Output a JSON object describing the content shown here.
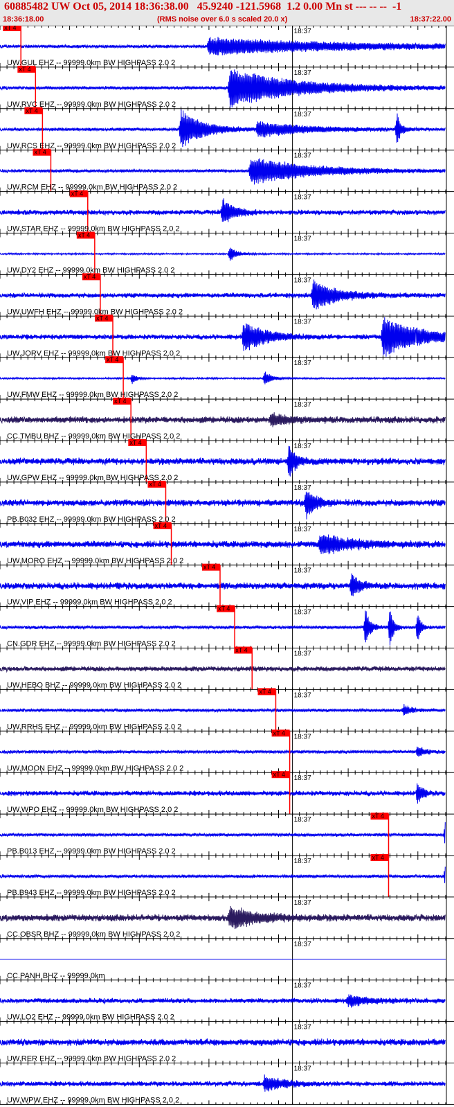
{
  "header": {
    "title": "60885482 UW Oct 05, 2014 18:36:38.00   45.9240 -121.5968  1.2 0.00 Mn st --- -- --  -1",
    "start_time": "18:36:18.00",
    "rms_note": "(RMS noise over 6.0 s scaled 20.0 x)",
    "end_time": "18:37:22.00"
  },
  "colors": {
    "trace": "#0000ee",
    "trace_dark": "#2a1a5e",
    "pick": "#ff0000",
    "pick_label_text": "#000000",
    "grid": "#000000",
    "header_text": "#cc0000"
  },
  "chart_data": {
    "type": "seismogram",
    "time_axis": {
      "start": "18:36:18.00",
      "end": "18:37:22.00",
      "minute_mark": "18:37"
    },
    "pick_label": "xT 4",
    "traces": [
      {
        "label": "UW.GUL EHZ -- 99999.0km BW  HIGHPASS  2.0  2",
        "pick_time": "18:36:21.0",
        "color": "trace",
        "base_amp": 2,
        "bursts": [
          {
            "t": 30,
            "w": 19,
            "a": 12
          }
        ]
      },
      {
        "label": "UW.RVC EHZ -- 99999.0km BW  HIGHPASS  2.0  2",
        "pick_time": "18:36:23.1",
        "color": "trace",
        "base_amp": 2,
        "bursts": [
          {
            "t": 33,
            "w": 9,
            "a": 28
          }
        ]
      },
      {
        "label": "UW.RCS EHZ -- 99999.0km BW  HIGHPASS  2.0  2",
        "pick_time": "18:36:24.1",
        "color": "trace",
        "base_amp": 2,
        "bursts": [
          {
            "t": 26,
            "w": 3,
            "a": 28
          },
          {
            "t": 37,
            "w": 7,
            "a": 10
          },
          {
            "t": 57,
            "w": 0.5,
            "a": 24
          }
        ]
      },
      {
        "label": "UW.RCM EHZ -- 99999.0km BW  HIGHPASS  2.0  2",
        "pick_time": "18:36:25.3",
        "color": "trace",
        "base_amp": 2,
        "bursts": [
          {
            "t": 36,
            "w": 8,
            "a": 20
          }
        ]
      },
      {
        "label": "UW.STAR EHZ -- 99999.0km BW  HIGHPASS  2.0  2",
        "pick_time": "18:36:30.6",
        "color": "trace",
        "base_amp": 3,
        "bursts": [
          {
            "t": 32,
            "w": 1.5,
            "a": 20
          }
        ]
      },
      {
        "label": "UW.DY2 EHZ -- 99999.0km BW  HIGHPASS  2.0  2",
        "pick_time": "18:36:31.6",
        "color": "trace",
        "base_amp": 1,
        "bursts": [
          {
            "t": 33,
            "w": 1,
            "a": 10
          }
        ]
      },
      {
        "label": "UW.UWFH EHZ -- 99999.0km BW  HIGHPASS  2.0  2",
        "pick_time": "18:36:32.4",
        "color": "trace",
        "base_amp": 3,
        "bursts": [
          {
            "t": 45,
            "w": 3,
            "a": 22
          }
        ]
      },
      {
        "label": "UW.JORV EHZ -- 99999.0km BW  HIGHPASS  2.0  2",
        "pick_time": "18:36:34.2",
        "color": "trace",
        "base_amp": 3,
        "bursts": [
          {
            "t": 35,
            "w": 3,
            "a": 20
          },
          {
            "t": 55,
            "w": 5,
            "a": 28
          }
        ]
      },
      {
        "label": "UW.FMW EHZ -- 99999.0km BW  HIGHPASS  2.0  2",
        "pick_time": "18:36:35.7",
        "color": "trace",
        "base_amp": 1,
        "bursts": [
          {
            "t": 19,
            "w": 0.5,
            "a": 8
          },
          {
            "t": 38,
            "w": 1,
            "a": 10
          }
        ]
      },
      {
        "label": "CC.TMBU BHZ -- 99999.0km BW  HIGHPASS  2.0  2",
        "pick_time": "18:36:36.8",
        "color": "trace_dark",
        "base_amp": 4,
        "bursts": [
          {
            "t": 39,
            "w": 2,
            "a": 8
          }
        ]
      },
      {
        "label": "UW.GPW EHZ -- 99999.0km BW  HIGHPASS  2.0  2",
        "pick_time": "18:36:39.0",
        "color": "trace",
        "base_amp": 4,
        "bursts": [
          {
            "t": 41.5,
            "w": 1,
            "a": 22
          }
        ]
      },
      {
        "label": "PB.B032 EHZ -- 99999.0km BW  HIGHPASS  2.0  2",
        "pick_time": "18:36:41.8",
        "color": "trace",
        "base_amp": 4,
        "bursts": [
          {
            "t": 44,
            "w": 1.2,
            "a": 22
          }
        ]
      },
      {
        "label": "UW.MORO EHZ -- 99999.0km BW  HIGHPASS  2.0  2",
        "pick_time": "18:36:42.6",
        "color": "trace",
        "base_amp": 4,
        "bursts": [
          {
            "t": 46,
            "w": 4,
            "a": 14
          }
        ]
      },
      {
        "label": "UW.VIP EHZ -- 99999.0km BW  HIGHPASS  2.0  2",
        "pick_time": "18:36:49.6",
        "color": "trace",
        "base_amp": 4,
        "bursts": [
          {
            "t": 50.5,
            "w": 1,
            "a": 16
          }
        ]
      },
      {
        "label": "CN.GDR EHZ -- 99999.0km BW  HIGHPASS  2.0  2",
        "pick_time": "18:36:51.7",
        "color": "trace",
        "base_amp": 2,
        "bursts": [
          {
            "t": 52.5,
            "w": 0.6,
            "a": 28
          },
          {
            "t": 56,
            "w": 0.5,
            "a": 28
          },
          {
            "t": 60,
            "w": 0.4,
            "a": 28
          }
        ]
      },
      {
        "label": "UW.HEBO BHZ -- 99999.0km BW  HIGHPASS  2.0  2",
        "pick_time": "18:36:54.2",
        "color": "trace_dark",
        "base_amp": 3,
        "bursts": []
      },
      {
        "label": "UW.RRHS EHZ -- 99999.0km BW  HIGHPASS  2.0  2",
        "pick_time": "18:36:57.6",
        "color": "trace",
        "base_amp": 2,
        "bursts": [
          {
            "t": 58,
            "w": 1,
            "a": 8
          }
        ]
      },
      {
        "label": "UW.MOON EHZ -- 99999.0km BW  HIGHPASS  2.0  2",
        "pick_time": "18:36:59.6",
        "color": "trace",
        "base_amp": 2,
        "bursts": [
          {
            "t": 60,
            "w": 1,
            "a": 8
          }
        ]
      },
      {
        "label": "UW.WPO EHZ -- 99999.0km BW  HIGHPASS  2.0  2",
        "pick_time": "18:36:59.6",
        "color": "trace",
        "base_amp": 3,
        "bursts": [
          {
            "t": 60,
            "w": 0.6,
            "a": 16
          }
        ]
      },
      {
        "label": "PB.B013 EHZ -- 99999.0km BW  HIGHPASS  2.0  2",
        "pick_time": "18:37:13.8",
        "color": "trace",
        "base_amp": 2,
        "bursts": [
          {
            "t": 64,
            "w": 2.5,
            "a": 24
          }
        ]
      },
      {
        "label": "PB.B943 EHZ -- 99999.0km BW  HIGHPASS  2.0  2",
        "pick_time": "18:37:13.8",
        "color": "trace",
        "base_amp": 2,
        "bursts": [
          {
            "t": 64,
            "w": 2.5,
            "a": 26
          }
        ]
      },
      {
        "label": "CC.OBSR BHZ -- 99999.0km BW  HIGHPASS  2.0  2",
        "pick_time": "",
        "color": "trace_dark",
        "base_amp": 4,
        "bursts": [
          {
            "t": 33,
            "w": 4,
            "a": 14
          }
        ]
      },
      {
        "label": "CC.PANH BHZ -- 99999.0km",
        "pick_time": "",
        "color": "trace",
        "base_amp": 0,
        "bursts": []
      },
      {
        "label": "UW.LO2 EHZ -- 99999.0km BW  HIGHPASS  2.0  2",
        "pick_time": "",
        "color": "trace",
        "base_amp": 3,
        "bursts": [
          {
            "t": 50,
            "w": 3,
            "a": 7
          }
        ]
      },
      {
        "label": "UW.RER EHZ -- 99999.0km BW  HIGHPASS  2.0  2",
        "pick_time": "",
        "color": "trace",
        "base_amp": 4,
        "bursts": []
      },
      {
        "label": "UW.WPW EHZ -- 99999.0km BW  HIGHPASS  2.0  2",
        "pick_time": "",
        "color": "trace",
        "base_amp": 3,
        "bursts": [
          {
            "t": 38,
            "w": 2.5,
            "a": 10
          }
        ]
      }
    ]
  }
}
